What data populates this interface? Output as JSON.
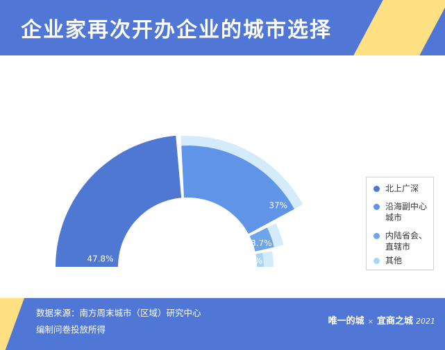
{
  "header": {
    "title": "企业家再次开办企业的城市选择"
  },
  "chart_data": {
    "type": "pie",
    "title": "企业家再次开办企业的城市选择",
    "categories": [
      "北上广深",
      "沿海副中心城市",
      "内陆省会、直辖市",
      "其他"
    ],
    "legend_labels": [
      "北上广深",
      "沿海副中心\n城市",
      "内陆省会、\n直辖市",
      "其他"
    ],
    "values": [
      47.8,
      37,
      8.7,
      6.5
    ],
    "value_labels": [
      "47.8%",
      "37%",
      "8.7%",
      "6.5%"
    ],
    "colors": [
      "#4e78d2",
      "#5f94e6",
      "#6ea4ea",
      "#a6d6f7"
    ],
    "legend_position": "right"
  },
  "footer": {
    "source_line1": "数据来源：南方周末城市（区域）研究中心",
    "source_line2": "编制问卷投放所得",
    "brand_left": "唯一的城",
    "brand_sep": "×",
    "brand_right": "宜商之城",
    "brand_year": "2021"
  }
}
